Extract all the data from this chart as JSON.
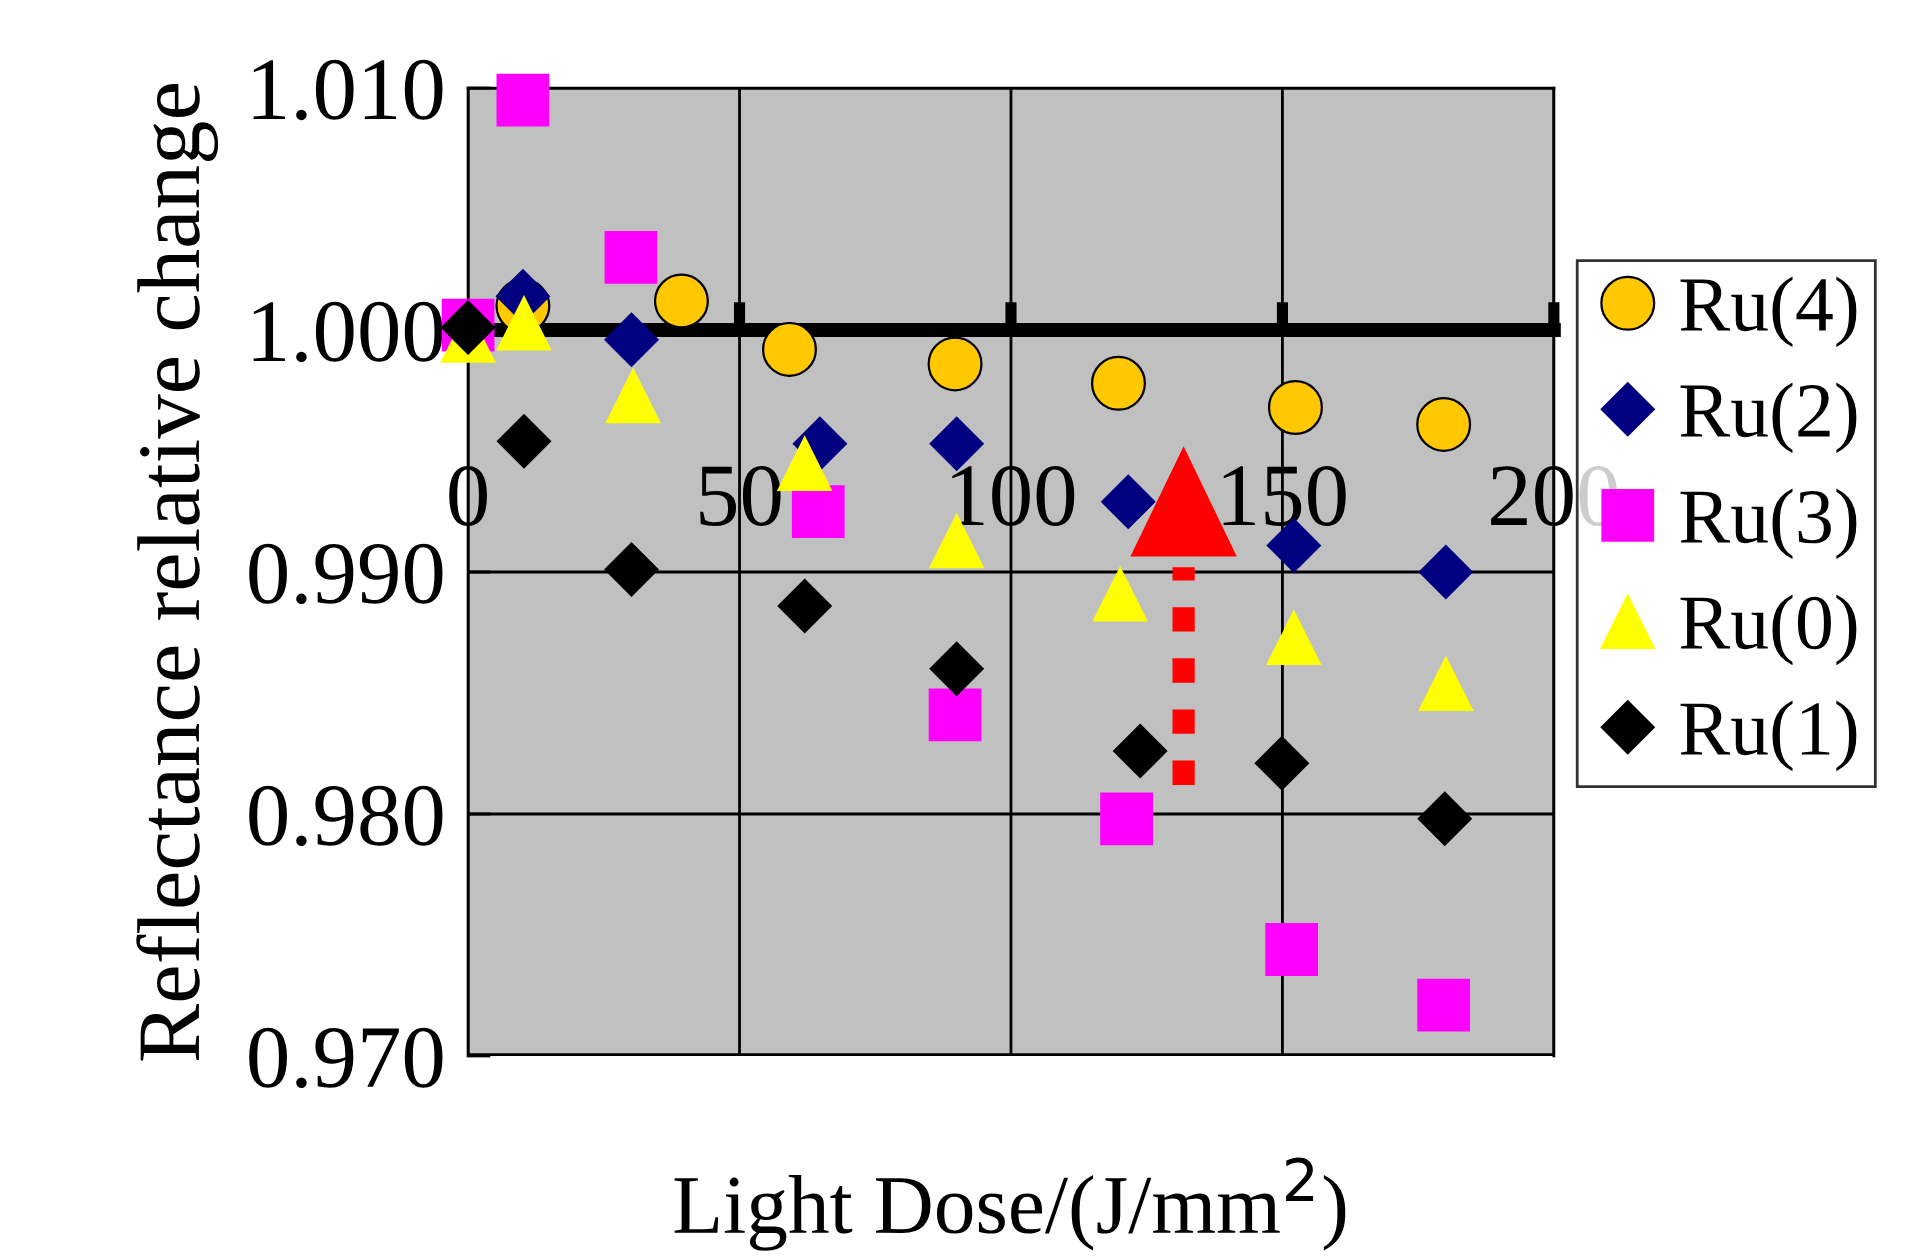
{
  "chart_data": {
    "type": "scatter",
    "xlabel": "Light Dose/(J/mm$^{2}$)",
    "ylabel": "Reflectance relative change",
    "xlim": [
      0,
      200
    ],
    "xticks": [
      0,
      50,
      100,
      150,
      200
    ],
    "ylim": [
      0.97,
      1.01
    ],
    "yticks": [
      {
        "value": 0.97,
        "label": "0.970"
      },
      {
        "value": 0.98,
        "label": "0.980"
      },
      {
        "value": 0.99,
        "label": "0.990"
      },
      {
        "value": 1.0,
        "label": "1.000"
      },
      {
        "value": 1.01,
        "label": "1.010"
      }
    ],
    "grid": true,
    "legend": "right",
    "series": [
      {
        "name": "Ru(4)",
        "color": "#ffc800",
        "marker": "circle",
        "x": [
          10.1,
          39.3,
          59.2,
          89.7,
          119.8,
          152.4,
          179.7
        ],
        "values": [
          1.001,
          1.0012,
          0.9992,
          0.9986,
          0.9978,
          0.9968,
          0.9961
        ]
      },
      {
        "name": "Ru(2)",
        "color": "#000080",
        "marker": "diamond",
        "x": [
          10.1,
          30.1,
          64.8,
          90.0,
          121.6,
          152.1,
          180.1
        ],
        "values": [
          1.0014,
          0.9996,
          0.9953,
          0.9953,
          0.9929,
          0.9911,
          0.99
        ]
      },
      {
        "name": "Ru(3)",
        "color": "#ff00ff",
        "marker": "square",
        "x": [
          0,
          10.1,
          30.0,
          64.5,
          89.7,
          121.3,
          151.7,
          179.7
        ],
        "values": [
          1.0002,
          1.0095,
          1.003,
          0.9925,
          0.9841,
          0.9798,
          0.9744,
          0.9721
        ]
      },
      {
        "name": "Ru(0)",
        "color": "#ffff00",
        "marker": "triangle",
        "x": [
          0,
          10.3,
          30.4,
          62.0,
          90.0,
          120.1,
          152.1,
          180.1
        ],
        "values": [
          0.9998,
          1.0003,
          0.9973,
          0.9945,
          0.9913,
          0.9891,
          0.9873,
          0.9854
        ]
      },
      {
        "name": "Ru(1)",
        "color": "#000000",
        "marker": "diamond",
        "x": [
          0,
          10.3,
          30.1,
          62.0,
          90.0,
          123.8,
          149.9,
          179.9
        ],
        "values": [
          1.0001,
          0.9954,
          0.9901,
          0.9886,
          0.986,
          0.9826,
          0.9821,
          0.9798
        ]
      }
    ]
  }
}
